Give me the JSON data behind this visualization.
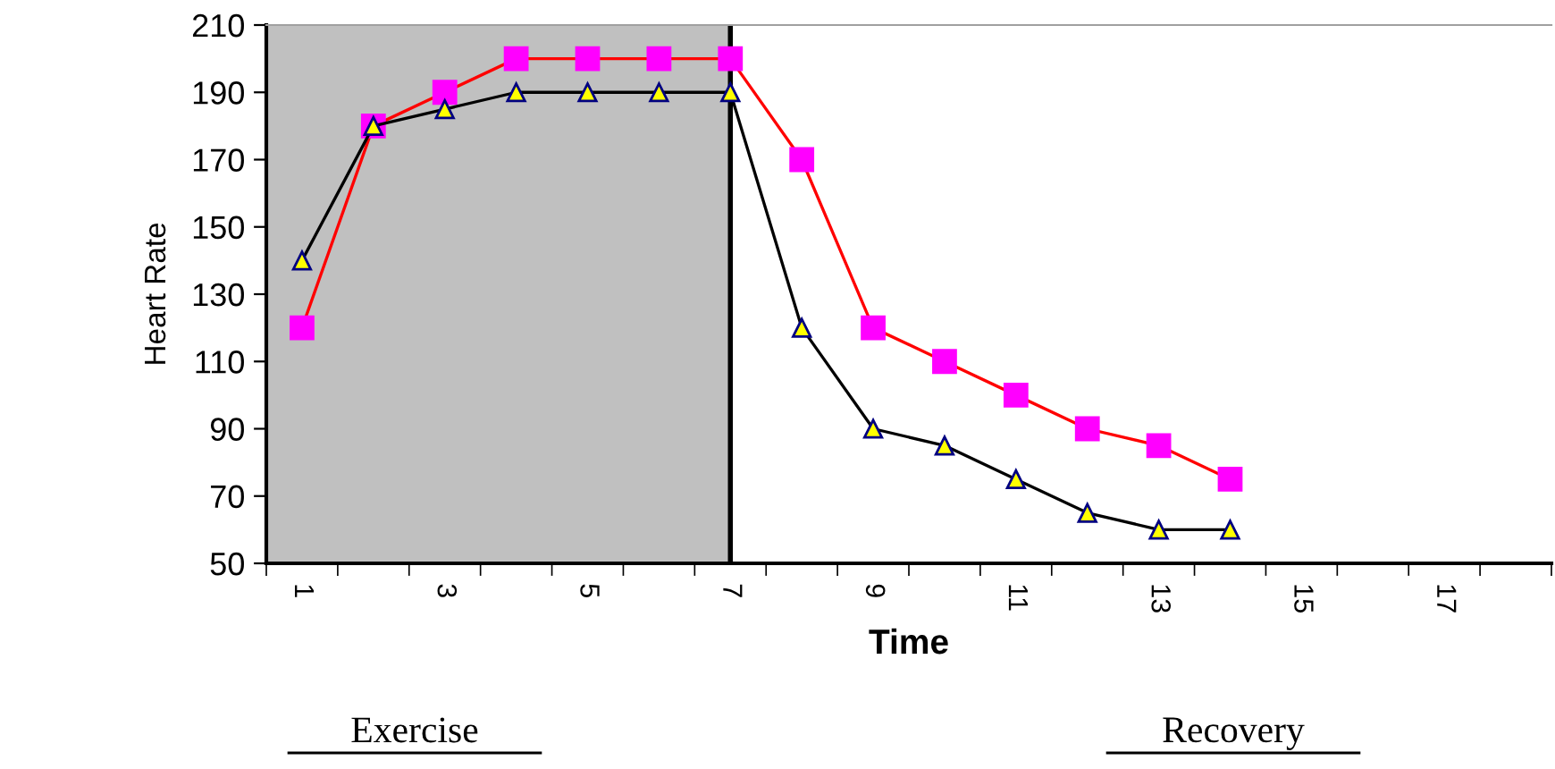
{
  "chart_data": {
    "type": "line",
    "xlabel": "Time",
    "ylabel": "Heart Rate",
    "categories": [
      "1",
      null,
      "3",
      null,
      "5",
      null,
      "7",
      null,
      "9",
      null,
      "11",
      null,
      "13",
      null,
      "15",
      null,
      "17",
      null
    ],
    "series": [
      {
        "color": "#ff0000",
        "marker": "square",
        "values": [
          120,
          180,
          190,
          200,
          200,
          200,
          200,
          170,
          120,
          110,
          100,
          90,
          85,
          75,
          null,
          null,
          null,
          null
        ]
      },
      {
        "color": "#000000",
        "marker": "triangle",
        "values": [
          140,
          180,
          185,
          190,
          190,
          190,
          190,
          120,
          90,
          85,
          75,
          65,
          60,
          60,
          null,
          null,
          null,
          null
        ]
      }
    ],
    "ylim": [
      50,
      210
    ],
    "yticks": [
      50,
      70,
      90,
      110,
      130,
      150,
      170,
      190,
      210
    ],
    "bands": [
      {
        "axis": "x",
        "from": "1",
        "to": "7",
        "color": "#c0c0c0"
      }
    ],
    "ref_lines": [
      {
        "axis": "x",
        "value": "7",
        "color": "#000000"
      }
    ],
    "grid": false,
    "line_style": "solid",
    "annotations": [
      "Exercise",
      "Recovery"
    ]
  }
}
